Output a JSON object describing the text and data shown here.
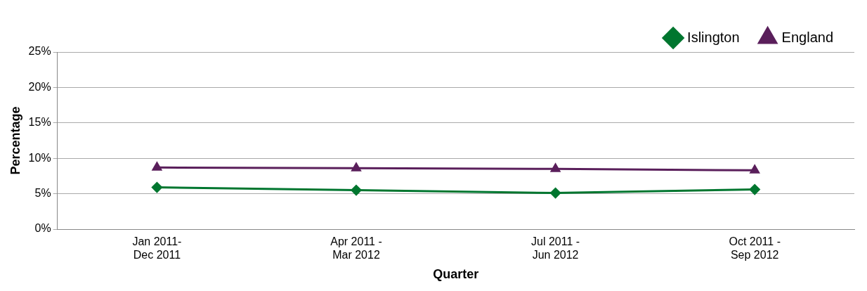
{
  "chart_data": {
    "type": "line",
    "xlabel": "Quarter",
    "ylabel": "Percentage",
    "categories": [
      "Jan 2011-\nDec 2011",
      "Apr 2011 -\nMar 2012",
      "Jul 2011 -\nJun 2012",
      "Oct 2011 -\nSep 2012"
    ],
    "series": [
      {
        "name": "Islington",
        "color": "#00762f",
        "values": [
          5.9,
          5.5,
          5.1,
          5.6
        ],
        "marker": "diamond"
      },
      {
        "name": "England",
        "color": "#5a1f5b",
        "values": [
          8.7,
          8.6,
          8.5,
          8.3
        ],
        "marker": "triangle"
      }
    ],
    "ylim": [
      0,
      25
    ],
    "yticks": [
      {
        "value": 0,
        "label": "0%"
      },
      {
        "value": 5,
        "label": "5%"
      },
      {
        "value": 10,
        "label": "10%"
      },
      {
        "value": 15,
        "label": "15%"
      },
      {
        "value": 20,
        "label": "20%"
      },
      {
        "value": 25,
        "label": "25%"
      }
    ],
    "grid": "y",
    "legend": "top right",
    "line_style": "solid"
  }
}
